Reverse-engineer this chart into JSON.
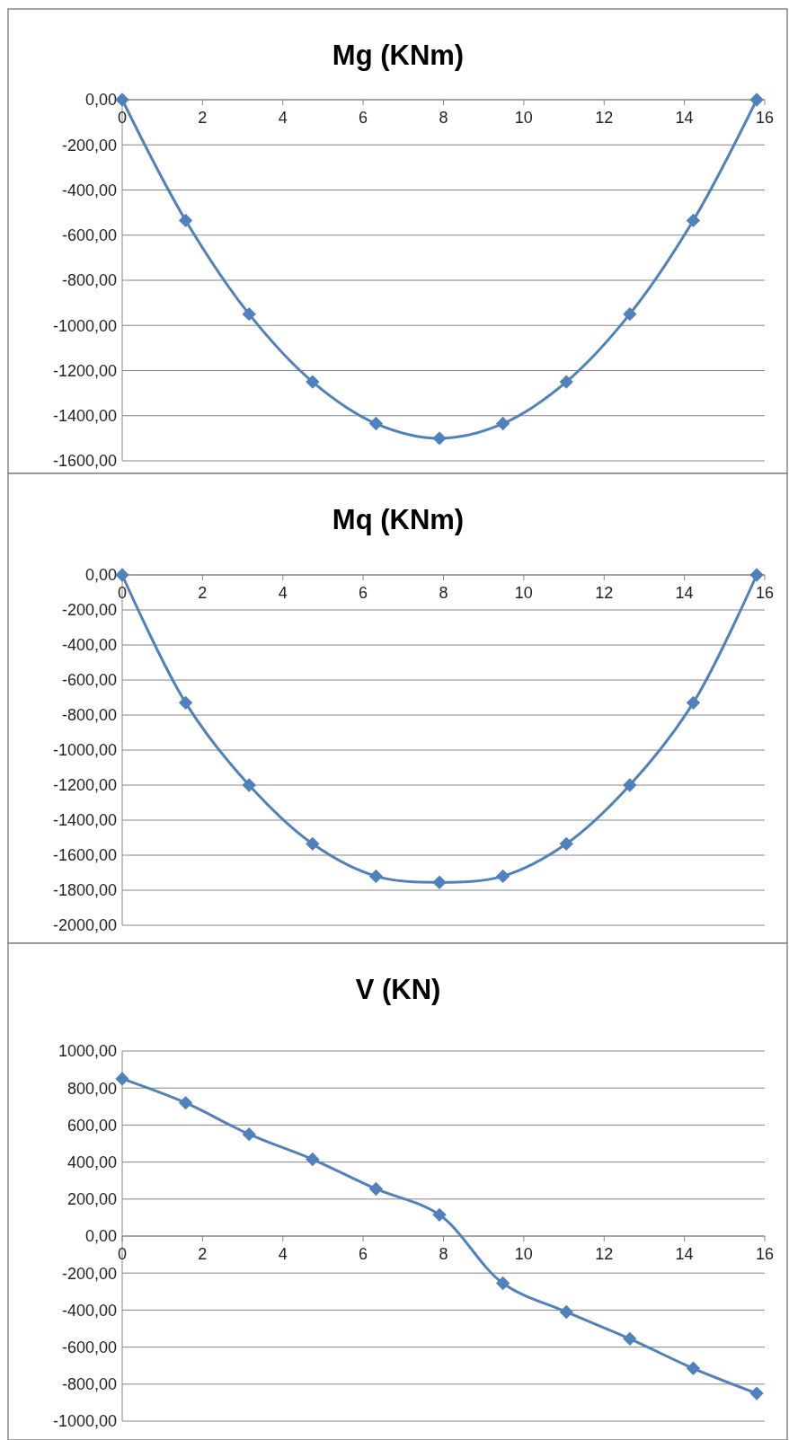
{
  "chart_data": [
    {
      "type": "line",
      "title": "Mg (KNm)",
      "x": [
        0,
        1.58,
        3.16,
        4.74,
        6.32,
        7.9,
        9.48,
        11.06,
        12.64,
        14.22,
        15.8
      ],
      "series": [
        {
          "color": "#4f81bd",
          "values": [
            0,
            -535,
            -950,
            -1250,
            -1435,
            -1500,
            -1435,
            -1250,
            -950,
            -535,
            0
          ]
        }
      ],
      "xlim": [
        0,
        16
      ],
      "xticks": [
        0,
        2,
        4,
        6,
        8,
        10,
        12,
        14,
        16
      ],
      "ylim": [
        -1600,
        0
      ],
      "yticks": [
        {
          "value": -1600,
          "label": "-1600,00"
        },
        {
          "value": -1400,
          "label": "-1400,00"
        },
        {
          "value": -1200,
          "label": "-1200,00"
        },
        {
          "value": -1000,
          "label": "-1000,00"
        },
        {
          "value": -800,
          "label": "-800,00"
        },
        {
          "value": -600,
          "label": "-600,00"
        },
        {
          "value": -400,
          "label": "-400,00"
        },
        {
          "value": -200,
          "label": "-200,00"
        },
        {
          "value": 0,
          "label": "0,00"
        }
      ],
      "grid": "y",
      "marker": "diamond",
      "line_style": "solid"
    },
    {
      "type": "line",
      "title": "Mq (KNm)",
      "x": [
        0,
        1.58,
        3.16,
        4.74,
        6.32,
        7.9,
        9.48,
        11.06,
        12.64,
        14.22,
        15.8
      ],
      "series": [
        {
          "color": "#4f81bd",
          "values": [
            0,
            -730,
            -1200,
            -1535,
            -1720,
            -1755,
            -1720,
            -1535,
            -1200,
            -730,
            0
          ]
        }
      ],
      "xlim": [
        0,
        16
      ],
      "xticks": [
        0,
        2,
        4,
        6,
        8,
        10,
        12,
        14,
        16
      ],
      "ylim": [
        -2000,
        0
      ],
      "yticks": [
        {
          "value": -2000,
          "label": "-2000,00"
        },
        {
          "value": -1800,
          "label": "-1800,00"
        },
        {
          "value": -1600,
          "label": "-1600,00"
        },
        {
          "value": -1400,
          "label": "-1400,00"
        },
        {
          "value": -1200,
          "label": "-1200,00"
        },
        {
          "value": -1000,
          "label": "-1000,00"
        },
        {
          "value": -800,
          "label": "-800,00"
        },
        {
          "value": -600,
          "label": "-600,00"
        },
        {
          "value": -400,
          "label": "-400,00"
        },
        {
          "value": -200,
          "label": "-200,00"
        },
        {
          "value": 0,
          "label": "0,00"
        }
      ],
      "grid": "y",
      "marker": "diamond",
      "line_style": "solid"
    },
    {
      "type": "line",
      "title": "V (KN)",
      "x": [
        0,
        1.58,
        3.16,
        4.74,
        6.32,
        7.9,
        9.48,
        11.06,
        12.64,
        14.22,
        15.8
      ],
      "series": [
        {
          "color": "#4f81bd",
          "values": [
            850,
            720,
            550,
            415,
            255,
            115,
            -255,
            -410,
            -555,
            -715,
            -850
          ]
        }
      ],
      "xlim": [
        0,
        16
      ],
      "xticks": [
        0,
        2,
        4,
        6,
        8,
        10,
        12,
        14,
        16
      ],
      "ylim": [
        -1000,
        1000
      ],
      "yticks": [
        {
          "value": -1000,
          "label": "-1000,00"
        },
        {
          "value": -800,
          "label": "-800,00"
        },
        {
          "value": -600,
          "label": "-600,00"
        },
        {
          "value": -400,
          "label": "-400,00"
        },
        {
          "value": -200,
          "label": "-200,00"
        },
        {
          "value": 0,
          "label": "0,00"
        },
        {
          "value": 200,
          "label": "200,00"
        },
        {
          "value": 400,
          "label": "400,00"
        },
        {
          "value": 600,
          "label": "600,00"
        },
        {
          "value": 800,
          "label": "800,00"
        },
        {
          "value": 1000,
          "label": "1000,00"
        }
      ],
      "grid": "y",
      "marker": "diamond",
      "line_style": "solid"
    }
  ]
}
